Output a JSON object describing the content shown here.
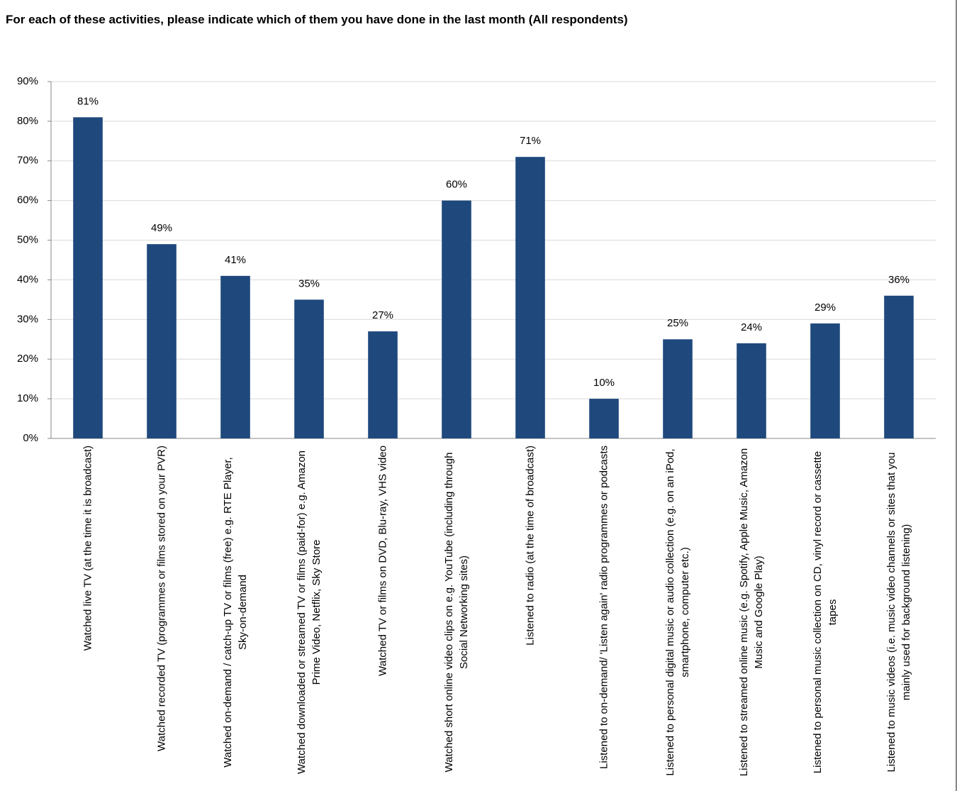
{
  "chart_data": {
    "type": "bar",
    "title": "For each of these activities, please indicate which of them you have done in the last month (All respondents)",
    "categories": [
      "Watched live TV (at the time it is broadcast)",
      "Watched recorded TV (programmes or films stored on your PVR)",
      "Watched on-demand / catch-up TV or films (free) e.g. RTE Player, Sky-on-demand",
      "Watched downloaded or streamed TV or films (paid-for) e.g. Amazon Prime Video, Netflix, Sky Store",
      "Watched TV or films on DVD, Blu-ray,  VHS video",
      "Watched short online video clips on e.g. YouTube (including  through Social Networking sites)",
      "Listened to radio (at the time of broadcast)",
      "Listened to on-demand/ 'Listen again' radio programmes or podcasts",
      "Listened to personal digital music or audio collection (e.g. on an iPod, smartphone, computer etc.)",
      "Listened to streamed online music (e.g. Spotify, Apple Music, Amazon Music and Google Play)",
      "Listened to personal music collection on CD, vinyl record or cassette tapes",
      "Listened to music videos (i.e. music video channels or sites that you mainly used for background listening)"
    ],
    "values": [
      81,
      49,
      41,
      35,
      27,
      60,
      71,
      10,
      25,
      24,
      29,
      36
    ],
    "value_labels": [
      "81%",
      "49%",
      "41%",
      "35%",
      "27%",
      "60%",
      "71%",
      "10%",
      "25%",
      "24%",
      "29%",
      "36%"
    ],
    "color": "#1f497d",
    "ylim": [
      0,
      90
    ],
    "yticks": [
      {
        "value": 0,
        "label": "0%"
      },
      {
        "value": 10,
        "label": "10%"
      },
      {
        "value": 20,
        "label": "20%"
      },
      {
        "value": 30,
        "label": "30%"
      },
      {
        "value": 40,
        "label": "40%"
      },
      {
        "value": 50,
        "label": "50%"
      },
      {
        "value": 60,
        "label": "60%"
      },
      {
        "value": 70,
        "label": "70%"
      },
      {
        "value": 80,
        "label": "80%"
      },
      {
        "value": 90,
        "label": "90%"
      }
    ],
    "grid": true
  }
}
